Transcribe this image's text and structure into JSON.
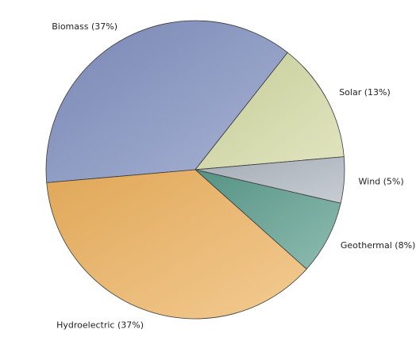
{
  "chart_data": {
    "type": "pie",
    "title": "",
    "slices": [
      {
        "label": "Biomass",
        "display": "Biomass (37%)",
        "value": 37,
        "color": "#7f8fbf"
      },
      {
        "label": "Solar",
        "display": "Solar (13%)",
        "value": 13,
        "color": "#d3d9a2"
      },
      {
        "label": "Wind",
        "display": "Wind (5%)",
        "value": 5,
        "color": "#aeb6c0"
      },
      {
        "label": "Geothermal",
        "display": "Geothermal (8%)",
        "value": 8,
        "color": "#5a9c8c"
      },
      {
        "label": "Hydroelectric",
        "display": "Hydroelectric (37%)",
        "value": 37,
        "color": "#eeb25e"
      }
    ],
    "start_angle_deg": 265,
    "direction": "clockwise",
    "legend": "none",
    "labels": "outside"
  }
}
